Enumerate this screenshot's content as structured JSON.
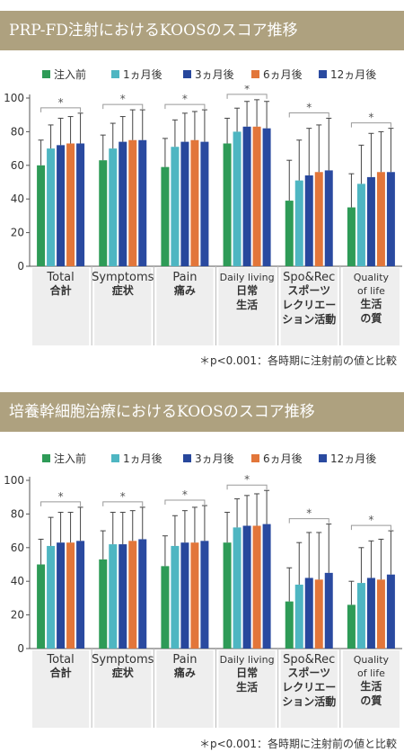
{
  "banner_color": "#aea17f",
  "chart_data": [
    {
      "type": "bar",
      "title": "PRP-FD注射におけるKOOSのスコア推移",
      "note": "＊p<0.001：各時期に注射前の値と比較",
      "ylim": [
        0,
        100
      ],
      "yticks": [
        "0",
        "20",
        "40",
        "60",
        "80",
        "100"
      ],
      "significance_mark": "*",
      "categories": [
        {
          "en": "Total",
          "ja": [
            "合計"
          ]
        },
        {
          "en": "Symptoms",
          "ja": [
            "症状"
          ]
        },
        {
          "en": "Pain",
          "ja": [
            "痛み"
          ]
        },
        {
          "en": "Daily living",
          "ja": [
            "日常",
            "生活"
          ]
        },
        {
          "en": "Spo&Rec",
          "ja": [
            "スポーツ",
            "レクリエー",
            "ション活動"
          ]
        },
        {
          "en": "Quality of life",
          "ja": [
            "生活",
            "の質"
          ]
        }
      ],
      "series": [
        {
          "name": "注入前",
          "color": "#2e9b57",
          "values": [
            60,
            63,
            59,
            73,
            39,
            35
          ],
          "errors": [
            15,
            15,
            17,
            15,
            24,
            20
          ]
        },
        {
          "name": "1ヵ月後",
          "color": "#4eb6c2",
          "values": [
            70,
            70,
            71,
            80,
            51,
            49
          ],
          "errors": [
            14,
            15,
            16,
            14,
            24,
            23
          ]
        },
        {
          "name": "3ヵ月後",
          "color": "#27479c",
          "values": [
            72,
            74,
            74,
            83,
            54,
            53
          ],
          "errors": [
            16,
            15,
            17,
            15,
            28,
            26
          ]
        },
        {
          "name": "6ヵ月後",
          "color": "#e2763a",
          "values": [
            73,
            75,
            75,
            83,
            56,
            56
          ],
          "errors": [
            16,
            18,
            17,
            16,
            28,
            24
          ]
        },
        {
          "name": "12ヵ月後",
          "color": "#2a4aa0",
          "values": [
            73,
            75,
            74,
            82,
            57,
            56
          ],
          "errors": [
            18,
            18,
            19,
            16,
            31,
            26
          ]
        }
      ]
    },
    {
      "type": "bar",
      "title": "培養幹細胞治療におけるKOOSのスコア推移",
      "note": "＊p<0.001：各時期に注射前の値と比較",
      "ylim": [
        0,
        100
      ],
      "yticks": [
        "0",
        "20",
        "40",
        "60",
        "80",
        "100"
      ],
      "significance_mark": "*",
      "categories": [
        {
          "en": "Total",
          "ja": [
            "合計"
          ]
        },
        {
          "en": "Symptoms",
          "ja": [
            "症状"
          ]
        },
        {
          "en": "Pain",
          "ja": [
            "痛み"
          ]
        },
        {
          "en": "Daily living",
          "ja": [
            "日常",
            "生活"
          ]
        },
        {
          "en": "Spo&Rec",
          "ja": [
            "スポーツ",
            "レクリエー",
            "ション活動"
          ]
        },
        {
          "en": "Quality of life",
          "ja": [
            "生活",
            "の質"
          ]
        }
      ],
      "series": [
        {
          "name": "注入前",
          "color": "#2e9b57",
          "values": [
            50,
            53,
            49,
            63,
            28,
            26
          ],
          "errors": [
            15,
            17,
            18,
            18,
            20,
            14
          ]
        },
        {
          "name": "1ヵ月後",
          "color": "#4eb6c2",
          "values": [
            61,
            62,
            61,
            72,
            38,
            39
          ],
          "errors": [
            17,
            19,
            18,
            17,
            25,
            21
          ]
        },
        {
          "name": "3ヵ月後",
          "color": "#27479c",
          "values": [
            63,
            62,
            63,
            73,
            42,
            42
          ],
          "errors": [
            18,
            19,
            19,
            18,
            27,
            22
          ]
        },
        {
          "name": "6ヵ月後",
          "color": "#e2763a",
          "values": [
            63,
            64,
            63,
            73,
            41,
            41
          ],
          "errors": [
            18,
            18,
            21,
            19,
            28,
            24
          ]
        },
        {
          "name": "12ヵ月後",
          "color": "#2a4aa0",
          "values": [
            64,
            65,
            64,
            74,
            45,
            44
          ],
          "errors": [
            20,
            19,
            21,
            20,
            29,
            26
          ]
        }
      ]
    }
  ]
}
